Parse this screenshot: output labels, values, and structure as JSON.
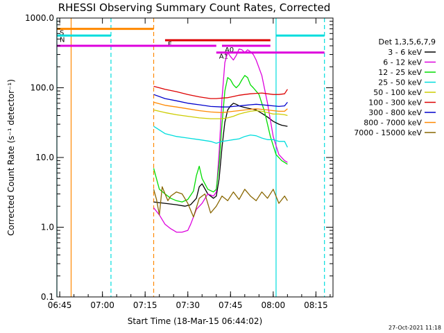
{
  "chart_data": {
    "type": "line",
    "title": "RHESSI Observing Summary Count Rates, Corrected",
    "xlabel": "Start Time (18-Mar-15 06:44:02)",
    "ylabel": "Corrected Count Rate (s⁻¹ detector⁻¹)",
    "x_unit": "minutes",
    "xlim": [
      "06:44",
      "08:21"
    ],
    "ylim": [
      0.1,
      1000
    ],
    "y_scale": "log",
    "x_ticks": [
      "06:45",
      "07:00",
      "07:15",
      "07:30",
      "07:45",
      "08:00",
      "08:15"
    ],
    "y_ticks": [
      "0.1",
      "1.0",
      "10.0",
      "100.0",
      "1000.0"
    ],
    "legend_title": "Det 1,3,5,6,7,9",
    "legend_position": "right",
    "series": [
      {
        "name": "3 - 6 keV",
        "color": "#000000",
        "x": [
          "07:18",
          "07:22",
          "07:26",
          "07:29",
          "07:31",
          "07:33",
          "07:34",
          "07:35",
          "07:37",
          "07:39",
          "07:40",
          "07:41",
          "07:42",
          "07:43",
          "07:44",
          "07:45",
          "07:46",
          "07:47",
          "07:48",
          "07:50",
          "07:52",
          "07:54",
          "07:56",
          "07:58",
          "08:00",
          "08:02",
          "08:03",
          "08:05"
        ],
        "y": [
          2.3,
          2.2,
          2.1,
          2.0,
          2.1,
          2.6,
          3.8,
          4.2,
          3.0,
          2.6,
          2.8,
          5,
          14,
          32,
          48,
          55,
          60,
          58,
          55,
          52,
          50,
          48,
          43,
          38,
          33,
          30,
          29,
          28
        ]
      },
      {
        "name": "6 - 12 keV",
        "color": "#dd00dd",
        "x": [
          "07:18",
          "07:20",
          "07:22",
          "07:24",
          "07:25",
          "07:26",
          "07:28",
          "07:30",
          "07:31",
          "07:33",
          "07:35",
          "07:37",
          "07:39",
          "07:40",
          "07:41",
          "07:42",
          "07:43",
          "07:44",
          "07:45",
          "07:46",
          "07:47",
          "07:48",
          "07:49",
          "07:50",
          "07:51",
          "07:52",
          "07:53",
          "07:54",
          "07:56",
          "07:58",
          "08:00",
          "08:02",
          "08:04",
          "08:05"
        ],
        "y": [
          1.9,
          1.5,
          1.1,
          0.95,
          0.9,
          0.85,
          0.85,
          0.9,
          1.1,
          1.8,
          2.2,
          3.0,
          2.8,
          3.2,
          12,
          70,
          230,
          320,
          280,
          250,
          290,
          360,
          350,
          320,
          350,
          330,
          300,
          250,
          150,
          60,
          20,
          11,
          9,
          8.5
        ]
      },
      {
        "name": "12 - 25 keV",
        "color": "#00dd00",
        "x": [
          "07:18",
          "07:20",
          "07:22",
          "07:24",
          "07:26",
          "07:28",
          "07:30",
          "07:32",
          "07:33",
          "07:34",
          "07:35",
          "07:37",
          "07:39",
          "07:40",
          "07:41",
          "07:42",
          "07:43",
          "07:44",
          "07:45",
          "07:46",
          "07:47",
          "07:48",
          "07:49",
          "07:50",
          "07:51",
          "07:52",
          "07:53",
          "07:55",
          "07:57",
          "07:59",
          "08:01",
          "08:03",
          "08:05"
        ],
        "y": [
          7,
          3.5,
          3.0,
          2.6,
          2.4,
          2.3,
          2.5,
          3.3,
          5.5,
          7.5,
          5,
          3.5,
          3.2,
          3.5,
          8,
          30,
          90,
          140,
          130,
          110,
          100,
          110,
          130,
          150,
          140,
          110,
          100,
          80,
          45,
          20,
          11,
          9,
          8
        ]
      },
      {
        "name": "25 - 50 keV",
        "color": "#00dddd",
        "x": [
          "07:18",
          "07:22",
          "07:26",
          "07:30",
          "07:34",
          "07:38",
          "07:40",
          "07:42",
          "07:44",
          "07:46",
          "07:48",
          "07:50",
          "07:52",
          "07:54",
          "07:56",
          "07:58",
          "08:00",
          "08:02",
          "08:04",
          "08:05"
        ],
        "y": [
          28,
          22,
          20,
          19,
          18,
          17,
          16,
          17,
          17.5,
          18,
          18.5,
          20,
          21,
          20.5,
          19,
          18,
          18,
          17,
          17,
          14
        ]
      },
      {
        "name": "50 - 100 keV",
        "color": "#cccc00",
        "x": [
          "07:18",
          "07:22",
          "07:26",
          "07:30",
          "07:34",
          "07:38",
          "07:42",
          "07:44",
          "07:46",
          "07:48",
          "07:50",
          "07:52",
          "07:54",
          "07:56",
          "07:58",
          "08:00",
          "08:02",
          "08:04",
          "08:05"
        ],
        "y": [
          48,
          44,
          41,
          39,
          37,
          36,
          36,
          37,
          39,
          42,
          44,
          46,
          47,
          46,
          44,
          42,
          42,
          41,
          40
        ]
      },
      {
        "name": "100 - 300 keV",
        "color": "#dd0000",
        "x": [
          "07:18",
          "07:22",
          "07:26",
          "07:30",
          "07:34",
          "07:38",
          "07:40",
          "07:42",
          "07:44",
          "07:46",
          "07:48",
          "07:50",
          "07:52",
          "07:54",
          "07:56",
          "07:58",
          "08:00",
          "08:02",
          "08:04",
          "08:05"
        ],
        "y": [
          105,
          95,
          88,
          80,
          74,
          70,
          70,
          71,
          72,
          75,
          78,
          80,
          82,
          83,
          84,
          82,
          80,
          80,
          82,
          95
        ]
      },
      {
        "name": "300 - 800 keV",
        "color": "#0000cc",
        "x": [
          "07:18",
          "07:22",
          "07:26",
          "07:30",
          "07:34",
          "07:38",
          "07:42",
          "07:44",
          "07:46",
          "07:48",
          "07:50",
          "07:52",
          "07:54",
          "07:56",
          "07:58",
          "08:00",
          "08:02",
          "08:04",
          "08:05"
        ],
        "y": [
          80,
          70,
          65,
          60,
          57,
          54,
          53,
          53,
          54,
          55,
          56,
          57,
          58,
          57,
          56,
          55,
          54,
          55,
          62
        ]
      },
      {
        "name": "800 - 7000 keV",
        "color": "#ff8800",
        "x": [
          "07:18",
          "07:22",
          "07:26",
          "07:30",
          "07:34",
          "07:38",
          "07:42",
          "07:44",
          "07:46",
          "07:48",
          "07:50",
          "07:52",
          "07:54",
          "07:56",
          "07:58",
          "08:00",
          "08:02",
          "08:04",
          "08:05"
        ],
        "y": [
          62,
          56,
          53,
          50,
          47,
          45,
          44,
          45,
          46,
          47,
          48,
          49,
          50,
          49,
          48,
          47,
          46,
          46,
          50
        ]
      },
      {
        "name": "7000 - 15000 keV",
        "color": "#886600",
        "x": [
          "07:18",
          "07:19",
          "07:20",
          "07:21",
          "07:22",
          "07:23",
          "07:24",
          "07:26",
          "07:28",
          "07:30",
          "07:32",
          "07:34",
          "07:36",
          "07:38",
          "07:40",
          "07:42",
          "07:44",
          "07:46",
          "07:48",
          "07:50",
          "07:52",
          "07:54",
          "07:56",
          "07:58",
          "08:00",
          "08:02",
          "08:04",
          "08:05"
        ],
        "y": [
          3.5,
          2.5,
          1.5,
          3.8,
          3.0,
          2.4,
          2.8,
          3.2,
          3.0,
          2.2,
          1.4,
          2.6,
          3.0,
          1.6,
          2.0,
          2.8,
          2.4,
          3.2,
          2.5,
          3.5,
          2.8,
          2.4,
          3.2,
          2.6,
          3.5,
          2.2,
          2.8,
          2.4
        ]
      }
    ],
    "bars": [
      {
        "label": "S",
        "color": "#ff8800",
        "y": 700,
        "x": [
          "06:44",
          "07:18"
        ]
      },
      {
        "label": "N",
        "color": "#00dddd",
        "y": 560,
        "x": [
          "06:44",
          "07:03"
        ]
      },
      {
        "label": "",
        "color": "#00dddd",
        "y": 560,
        "x": [
          "08:01",
          "08:18"
        ]
      },
      {
        "label": "F",
        "color": "#dd0000",
        "y": 480,
        "x": [
          "07:22",
          "07:59"
        ]
      },
      {
        "label": "",
        "color": "#dd00dd",
        "y": 400,
        "x": [
          "06:44",
          "07:40"
        ]
      },
      {
        "label": "A0",
        "color": "#dd00dd",
        "y": 400,
        "x": [
          "07:42",
          "07:59"
        ]
      },
      {
        "label": "A1",
        "color": "#dd00dd",
        "y": 320,
        "x": [
          "07:40",
          "08:18"
        ]
      }
    ],
    "vlines": [
      {
        "x": "06:44",
        "color": "#00dddd",
        "dashed": false
      },
      {
        "x": "06:49",
        "color": "#ff8800",
        "dashed": false
      },
      {
        "x": "07:03",
        "color": "#00dddd",
        "dashed": true
      },
      {
        "x": "07:18",
        "color": "#ff8800",
        "dashed": true
      },
      {
        "x": "08:01",
        "color": "#00dddd",
        "dashed": false
      },
      {
        "x": "08:18",
        "color": "#00dddd",
        "dashed": true
      }
    ]
  },
  "footer": {
    "timestamp": "27-Oct-2021 11:18"
  }
}
